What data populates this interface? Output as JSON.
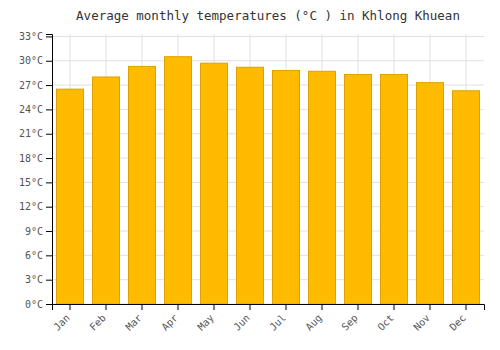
{
  "chart_data": {
    "type": "bar",
    "title": "Average monthly temperatures (°C ) in Khlong Khuean",
    "categories": [
      "Jan",
      "Feb",
      "Mar",
      "Apr",
      "May",
      "Jun",
      "Jul",
      "Aug",
      "Sep",
      "Oct",
      "Nov",
      "Dec"
    ],
    "values": [
      26.5,
      28.0,
      29.3,
      30.5,
      29.7,
      29.2,
      28.8,
      28.7,
      28.3,
      28.3,
      27.3,
      26.3
    ],
    "color": "#FFBB00",
    "ylim": [
      0,
      33.3
    ],
    "yticks": [
      {
        "value": 0,
        "label": "0°C"
      },
      {
        "value": 3,
        "label": "3°C"
      },
      {
        "value": 6,
        "label": "6°C"
      },
      {
        "value": 9,
        "label": "9°C"
      },
      {
        "value": 12,
        "label": "12°C"
      },
      {
        "value": 15,
        "label": "15°C"
      },
      {
        "value": 18,
        "label": "18°C"
      },
      {
        "value": 21,
        "label": "21°C"
      },
      {
        "value": 24,
        "label": "24°C"
      },
      {
        "value": 27,
        "label": "27°C"
      },
      {
        "value": 30,
        "label": "30°C"
      },
      {
        "value": 33,
        "label": "33°C"
      }
    ],
    "grid": true
  }
}
